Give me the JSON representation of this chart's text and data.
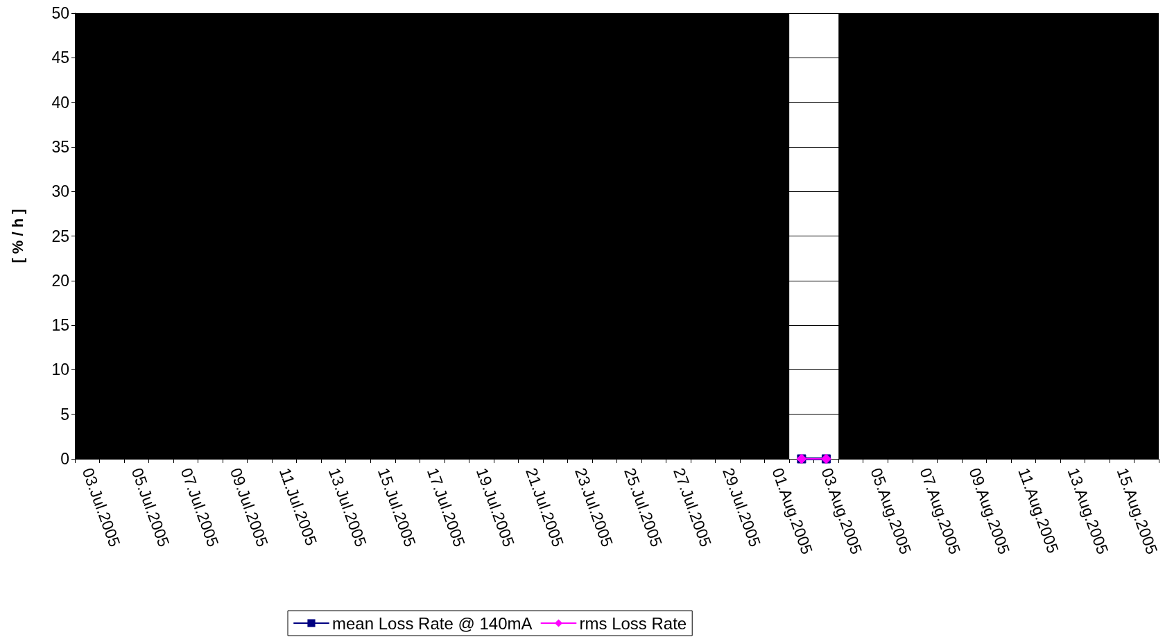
{
  "chart_data": {
    "type": "line",
    "ylabel": "[ % / h ]",
    "categories": [
      "03.Jul.2005",
      null,
      "05.Jul.2005",
      null,
      "07.Jul.2005",
      null,
      "09.Jul.2005",
      null,
      "11.Jul.2005",
      null,
      "13.Jul.2005",
      null,
      "15.Jul.2005",
      null,
      "17.Jul.2005",
      null,
      "19.Jul.2005",
      null,
      "21.Jul.2005",
      null,
      "23.Jul.2005",
      null,
      "25.Jul.2005",
      null,
      "27.Jul.2005",
      null,
      "29.Jul.2005",
      null,
      "01.Aug.2005",
      null,
      "03.Aug.2005",
      null,
      "05.Aug.2005",
      null,
      "07.Aug.2005",
      null,
      "09.Aug.2005",
      null,
      "11.Aug.2005",
      null,
      "13.Aug.2005",
      null,
      "15.Aug.2005",
      null
    ],
    "series": [
      {
        "name": "mean Loss Rate @ 140mA",
        "color": "#000080",
        "marker": "square",
        "values": [
          null,
          null,
          null,
          null,
          null,
          null,
          null,
          null,
          null,
          null,
          null,
          null,
          null,
          null,
          null,
          null,
          null,
          null,
          null,
          null,
          null,
          null,
          null,
          null,
          null,
          null,
          null,
          null,
          null,
          0,
          0,
          null,
          null,
          null,
          null,
          null,
          null,
          null,
          null,
          null,
          null,
          null,
          null,
          null
        ]
      },
      {
        "name": "rms Loss Rate",
        "color": "#ff00ff",
        "marker": "diamond",
        "values": [
          null,
          null,
          null,
          null,
          null,
          null,
          null,
          null,
          null,
          null,
          null,
          null,
          null,
          null,
          null,
          null,
          null,
          null,
          null,
          null,
          null,
          null,
          null,
          null,
          null,
          null,
          null,
          null,
          null,
          0,
          0,
          null,
          null,
          null,
          null,
          null,
          null,
          null,
          null,
          null,
          null,
          null,
          null,
          null
        ]
      }
    ],
    "ylim": [
      0,
      50
    ],
    "yticks": [
      0,
      5,
      10,
      15,
      20,
      25,
      30,
      35,
      40,
      45,
      50
    ],
    "grid": "y",
    "legend": "bottom",
    "line_style": "solid"
  }
}
